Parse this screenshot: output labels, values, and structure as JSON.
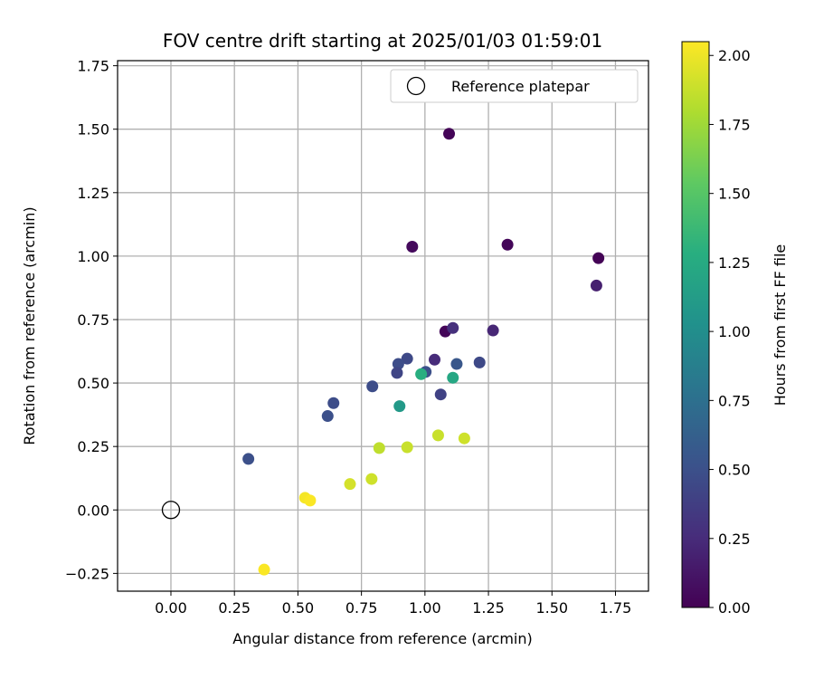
{
  "chart_data": {
    "type": "scatter",
    "title": "FOV centre drift starting at 2025/01/03 01:59:01",
    "xlabel": "Angular distance from reference (arcmin)",
    "ylabel": "Rotation from reference (arcmin)",
    "xlim": [
      -0.21,
      1.88
    ],
    "ylim": [
      -0.32,
      1.77
    ],
    "xticks": [
      0.0,
      0.25,
      0.5,
      0.75,
      1.0,
      1.25,
      1.5,
      1.75
    ],
    "xtick_labels": [
      "0.00",
      "0.25",
      "0.50",
      "0.75",
      "1.00",
      "1.25",
      "1.50",
      "1.75"
    ],
    "yticks": [
      -0.25,
      0.0,
      0.25,
      0.5,
      0.75,
      1.0,
      1.25,
      1.5,
      1.75
    ],
    "ytick_labels": [
      "−0.25",
      "0.00",
      "0.25",
      "0.50",
      "0.75",
      "1.00",
      "1.25",
      "1.50",
      "1.75"
    ],
    "grid": true,
    "legend": {
      "placement": "top-right",
      "entries": [
        "Reference platepar"
      ]
    },
    "reference_point": {
      "x": 0.0,
      "y": 0.0
    },
    "colorbar": {
      "label": "Hours from first FF file",
      "range": [
        0.0,
        2.05
      ],
      "ticks": [
        0.0,
        0.25,
        0.5,
        0.75,
        1.0,
        1.25,
        1.5,
        1.75,
        2.0
      ],
      "tick_labels": [
        "0.00",
        "0.25",
        "0.50",
        "0.75",
        "1.00",
        "1.25",
        "1.50",
        "1.75",
        "2.00"
      ],
      "colormap": "viridis"
    },
    "points": [
      {
        "x": 1.095,
        "y": 1.482,
        "hours": 0.02
      },
      {
        "x": 0.95,
        "y": 1.037,
        "hours": 0.05
      },
      {
        "x": 1.325,
        "y": 1.045,
        "hours": 0.03
      },
      {
        "x": 1.683,
        "y": 0.992,
        "hours": 0.01
      },
      {
        "x": 1.675,
        "y": 0.884,
        "hours": 0.18
      },
      {
        "x": 1.08,
        "y": 0.703,
        "hours": 0.03
      },
      {
        "x": 1.11,
        "y": 0.717,
        "hours": 0.28
      },
      {
        "x": 1.268,
        "y": 0.707,
        "hours": 0.22
      },
      {
        "x": 1.038,
        "y": 0.592,
        "hours": 0.25
      },
      {
        "x": 0.93,
        "y": 0.596,
        "hours": 0.45
      },
      {
        "x": 0.895,
        "y": 0.575,
        "hours": 0.48
      },
      {
        "x": 0.89,
        "y": 0.54,
        "hours": 0.42
      },
      {
        "x": 1.003,
        "y": 0.544,
        "hours": 0.5
      },
      {
        "x": 1.125,
        "y": 0.575,
        "hours": 0.55
      },
      {
        "x": 1.215,
        "y": 0.581,
        "hours": 0.45
      },
      {
        "x": 0.985,
        "y": 0.535,
        "hours": 1.28
      },
      {
        "x": 1.11,
        "y": 0.521,
        "hours": 1.22
      },
      {
        "x": 0.793,
        "y": 0.487,
        "hours": 0.48
      },
      {
        "x": 1.062,
        "y": 0.455,
        "hours": 0.4
      },
      {
        "x": 0.64,
        "y": 0.421,
        "hours": 0.48
      },
      {
        "x": 0.9,
        "y": 0.409,
        "hours": 1.1
      },
      {
        "x": 0.617,
        "y": 0.37,
        "hours": 0.5
      },
      {
        "x": 1.052,
        "y": 0.294,
        "hours": 1.88
      },
      {
        "x": 1.155,
        "y": 0.282,
        "hours": 1.9
      },
      {
        "x": 0.82,
        "y": 0.244,
        "hours": 1.85
      },
      {
        "x": 0.93,
        "y": 0.247,
        "hours": 1.88
      },
      {
        "x": 0.305,
        "y": 0.201,
        "hours": 0.5
      },
      {
        "x": 0.79,
        "y": 0.122,
        "hours": 1.9
      },
      {
        "x": 0.705,
        "y": 0.102,
        "hours": 1.92
      },
      {
        "x": 0.528,
        "y": 0.048,
        "hours": 2.02
      },
      {
        "x": 0.548,
        "y": 0.037,
        "hours": 2.04
      },
      {
        "x": 0.367,
        "y": -0.235,
        "hours": 2.04
      }
    ]
  }
}
